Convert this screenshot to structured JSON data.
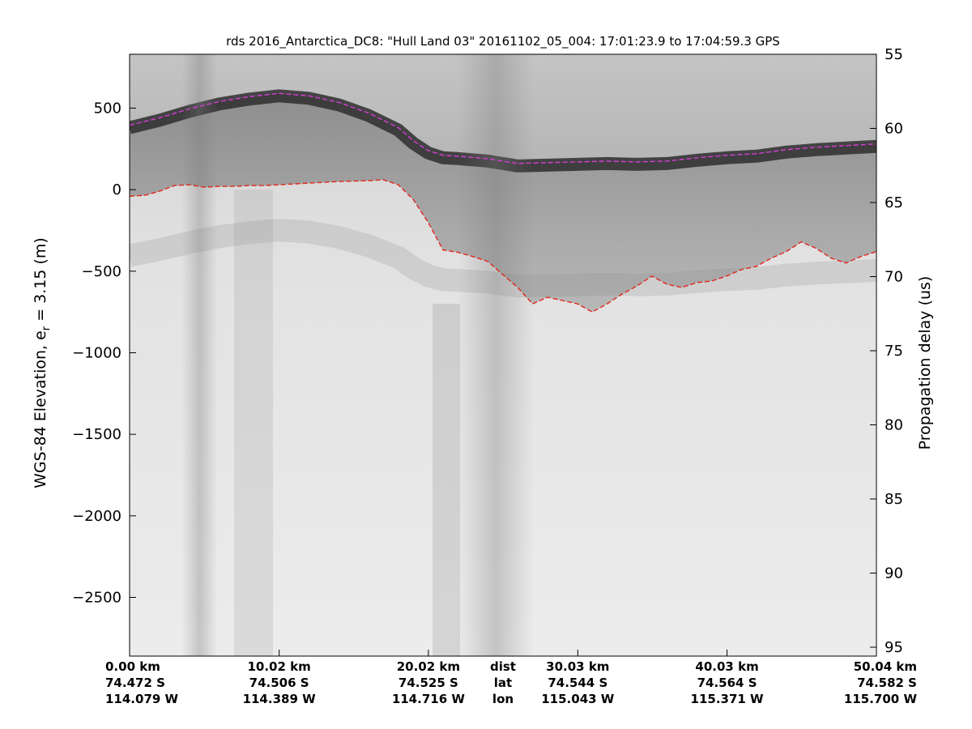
{
  "chart_data": {
    "type": "heatmap",
    "title": "rds 2016_Antarctica_DC8: \"Hull Land 03\"  20161102_05_004: 17:01:23.9 to 17:04:59.3 GPS",
    "ylabel_left": "WGS-84 Elevation, e",
    "ylabel_left_sub": "r",
    "ylabel_left_suffix": " = 3.15 (m)",
    "ylabel_right": "Propagation delay (us)",
    "colormap": "grayscale",
    "grid": false,
    "y_left": {
      "ticks": [
        500,
        0,
        -500,
        -1000,
        -1500,
        -2000,
        -2500
      ],
      "tick_labels": [
        "500",
        "0",
        "−500",
        "−1000",
        "−1500",
        "−2000",
        "−2500"
      ],
      "range": [
        -2860,
        830
      ]
    },
    "y_right": {
      "ticks": [
        55,
        60,
        65,
        70,
        75,
        80,
        85,
        90,
        95
      ],
      "tick_labels": [
        "55",
        "60",
        "65",
        "70",
        "75",
        "80",
        "85",
        "90",
        "95"
      ],
      "range": [
        55,
        95.6
      ]
    },
    "x_axis": {
      "range_km": [
        0,
        50.04
      ],
      "rows": [
        "dist",
        "lat",
        "lon"
      ],
      "ticks": [
        {
          "dist_km": 0.0,
          "dist": "0.00 km",
          "lat": "74.472 S",
          "lon": "114.079 W"
        },
        {
          "dist_km": 10.02,
          "dist": "10.02 km",
          "lat": "74.506 S",
          "lon": "114.389 W"
        },
        {
          "dist_km": 20.02,
          "dist": "20.02 km",
          "lat": "74.525 S",
          "lon": "114.716 W"
        },
        {
          "dist_km": 30.03,
          "dist": "30.03 km",
          "lat": "74.544 S",
          "lon": "115.043 W"
        },
        {
          "dist_km": 40.03,
          "dist": "40.03 km",
          "lat": "74.564 S",
          "lon": "115.371 W"
        },
        {
          "dist_km": 50.04,
          "dist": "50.04 km",
          "lat": "74.582 S",
          "lon": "115.700 W"
        }
      ]
    },
    "series": [
      {
        "color": "#d63dd6",
        "style": "dashed",
        "points": [
          [
            0,
            395
          ],
          [
            2,
            440
          ],
          [
            4,
            495
          ],
          [
            6,
            540
          ],
          [
            8,
            570
          ],
          [
            10,
            590
          ],
          [
            12,
            575
          ],
          [
            14,
            535
          ],
          [
            16,
            470
          ],
          [
            18,
            380
          ],
          [
            19,
            300
          ],
          [
            20,
            240
          ],
          [
            21,
            210
          ],
          [
            22,
            205
          ],
          [
            24,
            190
          ],
          [
            26,
            160
          ],
          [
            28,
            165
          ],
          [
            30,
            170
          ],
          [
            32,
            175
          ],
          [
            34,
            170
          ],
          [
            36,
            175
          ],
          [
            38,
            195
          ],
          [
            40,
            210
          ],
          [
            42,
            220
          ],
          [
            44,
            245
          ],
          [
            46,
            260
          ],
          [
            48,
            270
          ],
          [
            50.04,
            280
          ]
        ]
      },
      {
        "color": "#e0281e",
        "style": "dashed",
        "points": [
          [
            0,
            -40
          ],
          [
            1,
            -35
          ],
          [
            2,
            -10
          ],
          [
            3,
            25
          ],
          [
            4,
            30
          ],
          [
            5,
            15
          ],
          [
            6,
            20
          ],
          [
            7,
            20
          ],
          [
            8,
            25
          ],
          [
            9,
            25
          ],
          [
            10,
            30
          ],
          [
            12,
            40
          ],
          [
            14,
            50
          ],
          [
            16,
            55
          ],
          [
            17,
            60
          ],
          [
            18,
            30
          ],
          [
            19,
            -60
          ],
          [
            20,
            -200
          ],
          [
            21,
            -370
          ],
          [
            22,
            -385
          ],
          [
            23,
            -410
          ],
          [
            24,
            -440
          ],
          [
            25,
            -520
          ],
          [
            26,
            -600
          ],
          [
            27,
            -700
          ],
          [
            28,
            -660
          ],
          [
            29,
            -680
          ],
          [
            30,
            -700
          ],
          [
            31,
            -750
          ],
          [
            32,
            -700
          ],
          [
            33,
            -640
          ],
          [
            34,
            -590
          ],
          [
            35,
            -530
          ],
          [
            36,
            -580
          ],
          [
            37,
            -600
          ],
          [
            38,
            -570
          ],
          [
            39,
            -560
          ],
          [
            40,
            -530
          ],
          [
            41,
            -490
          ],
          [
            42,
            -470
          ],
          [
            43,
            -420
          ],
          [
            44,
            -380
          ],
          [
            45,
            -320
          ],
          [
            46,
            -360
          ],
          [
            47,
            -420
          ],
          [
            48,
            -450
          ],
          [
            49,
            -410
          ],
          [
            50.04,
            -380
          ]
        ]
      }
    ]
  }
}
